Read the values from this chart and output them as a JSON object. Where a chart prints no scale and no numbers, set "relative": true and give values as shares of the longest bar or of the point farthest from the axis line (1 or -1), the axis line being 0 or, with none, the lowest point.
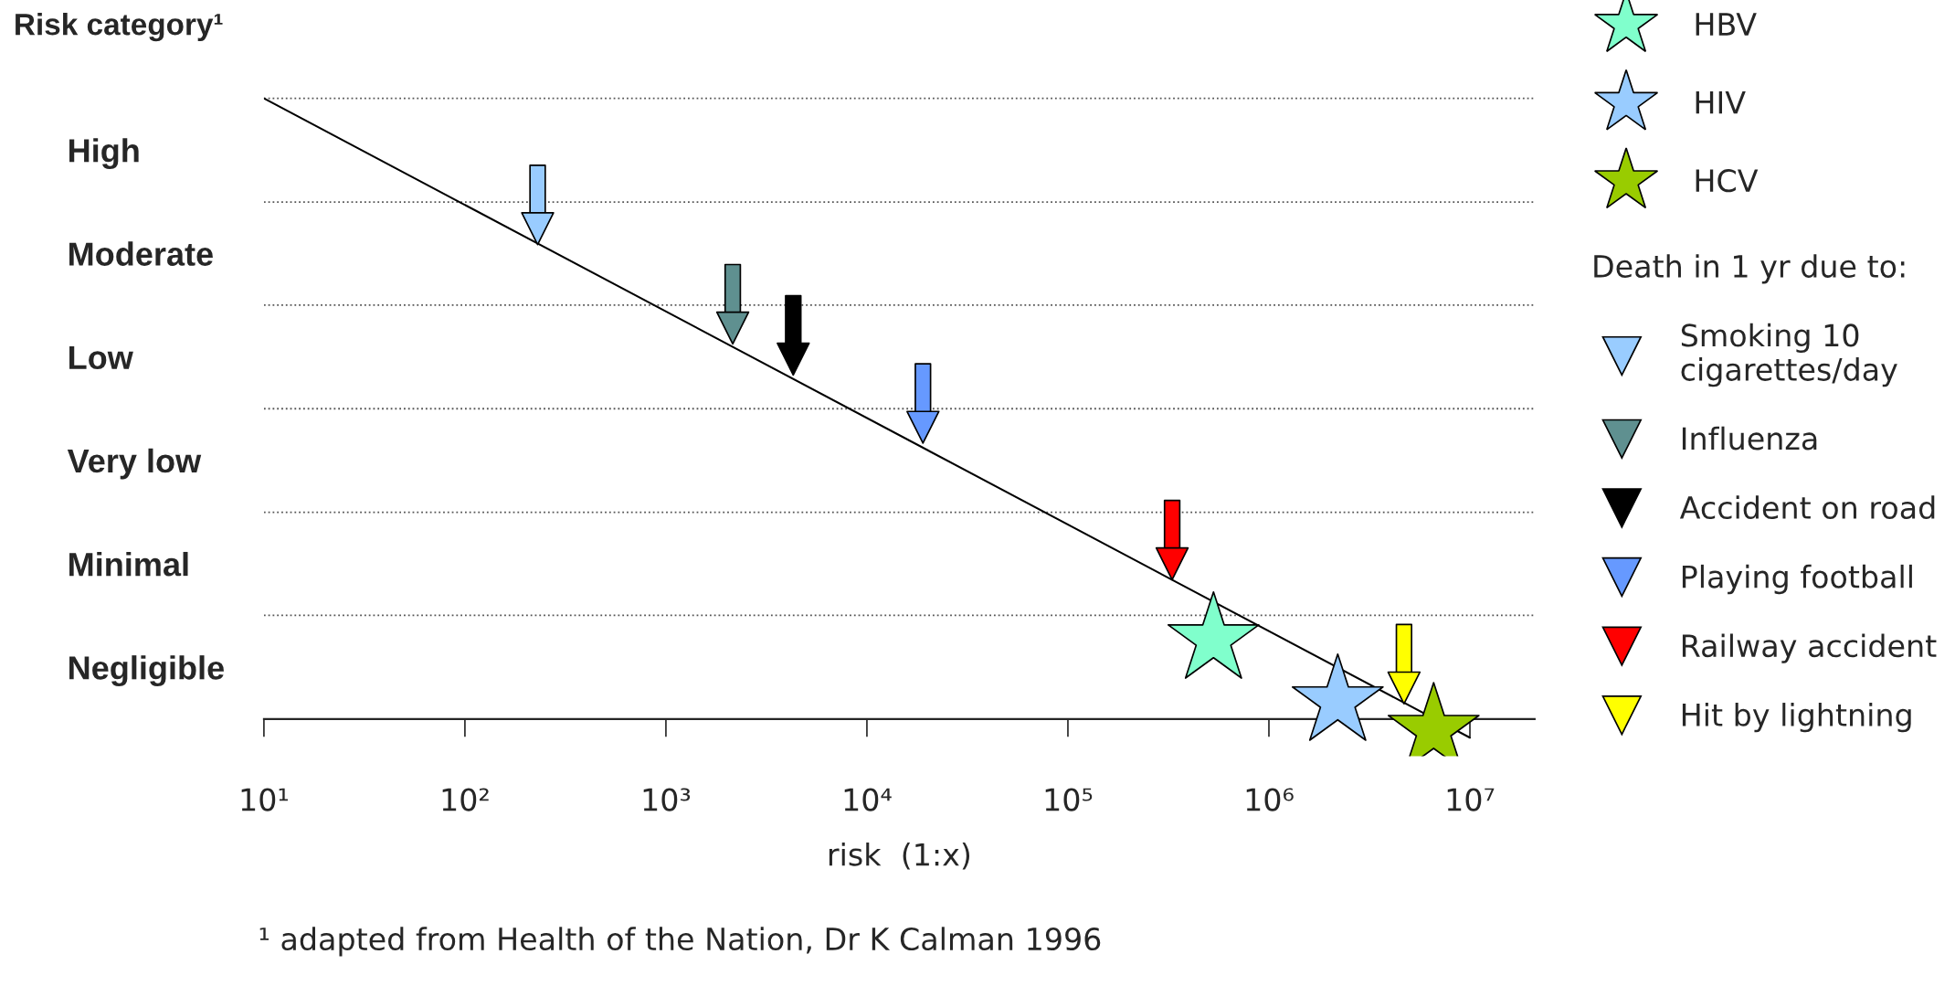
{
  "chart_data": {
    "type": "scatter",
    "relative": true,
    "ylabel": "Risk category¹",
    "xlabel": "risk  (1:x)",
    "annotations": [
      "¹ adapted from Health of the Nation, Dr K Calman 1996"
    ],
    "log": "x",
    "xlim": [
      10,
      21000000
    ],
    "xticks": [
      {
        "value": 10,
        "label": "10¹"
      },
      {
        "value": 100,
        "label": "10²"
      },
      {
        "value": 1000,
        "label": "10³"
      },
      {
        "value": 10000,
        "label": "10⁴"
      },
      {
        "value": 100000,
        "label": "10⁵"
      },
      {
        "value": 1000000,
        "label": "10⁶"
      },
      {
        "value": 10000000,
        "label": "10⁷"
      }
    ],
    "y_categories": [
      "High",
      "Moderate",
      "Low",
      "Very low",
      "Minimal",
      "Negligible"
    ],
    "grid": false,
    "legend": "right",
    "legend_title": "Death in 1 yr due to:",
    "ref_lines": [
      {
        "axis": "y",
        "value": 0.167,
        "color": "#555555",
        "line_style": "dotted"
      },
      {
        "axis": "y",
        "value": 0.333,
        "color": "#555555",
        "line_style": "dotted"
      },
      {
        "axis": "y",
        "value": 0.5,
        "color": "#555555",
        "line_style": "dotted"
      },
      {
        "axis": "y",
        "value": 0.667,
        "color": "#555555",
        "line_style": "dotted"
      },
      {
        "axis": "y",
        "value": 0.833,
        "color": "#555555",
        "line_style": "dotted"
      },
      {
        "axis": "y",
        "value": 1,
        "color": "#555555",
        "line_style": "dotted"
      }
    ],
    "series": [
      {
        "type": "line",
        "color": "#000000",
        "x": [
          10,
          10000000
        ],
        "values": [
          1,
          -0.03
        ],
        "marker": "none",
        "line_style": "solid"
      },
      {
        "name": "HBV",
        "color": "#80ffcc",
        "x": [
          530000
        ],
        "values": [
          0.128
        ],
        "marker": "star"
      },
      {
        "name": "HIV",
        "color": "#99ccff",
        "x": [
          2200000
        ],
        "values": [
          0.028
        ],
        "marker": "star"
      },
      {
        "name": "HCV",
        "color": "#99cc00",
        "x": [
          6600000
        ],
        "values": [
          -0.018
        ],
        "marker": "star"
      },
      {
        "name": "Smoking 10\ncigarettes/day",
        "color": "#99ccff",
        "x": [
          230
        ],
        "values": [
          0.79
        ],
        "marker": "triangle"
      },
      {
        "name": "Influenza",
        "color": "#5f9090",
        "x": [
          2150
        ],
        "values": [
          0.63
        ],
        "marker": "triangle"
      },
      {
        "name": "Accident on road",
        "color": "#000000",
        "x": [
          4300
        ],
        "values": [
          0.58
        ],
        "marker": "triangle"
      },
      {
        "name": "Playing football",
        "color": "#6699ff",
        "x": [
          19000
        ],
        "values": [
          0.47
        ],
        "marker": "triangle"
      },
      {
        "name": "Railway accident",
        "color": "#ff0000",
        "x": [
          330000
        ],
        "values": [
          0.25
        ],
        "marker": "triangle"
      },
      {
        "name": "Hit by lightning",
        "color": "#ffff00",
        "x": [
          4700000
        ],
        "values": [
          0.05
        ],
        "marker": "triangle"
      }
    ]
  }
}
